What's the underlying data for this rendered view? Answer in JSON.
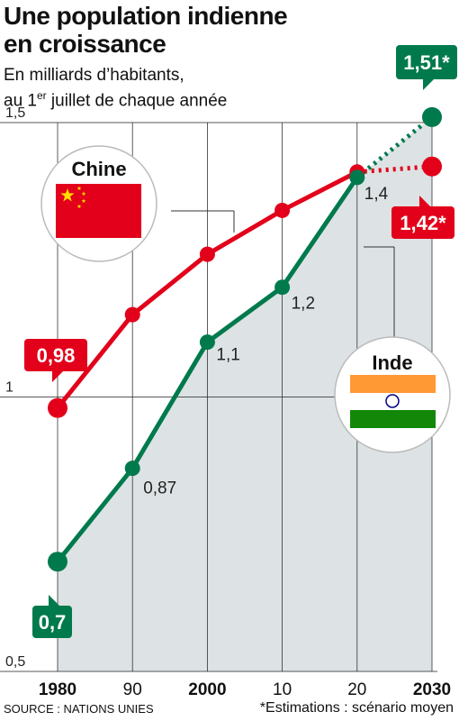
{
  "header": {
    "title_line1": "Une population indienne",
    "title_line2": "en croissance",
    "subtitle_line1": "En milliards d’habitants,",
    "subtitle_line2_pre": "au 1",
    "subtitle_line2_sup": "er",
    "subtitle_line2_post": " juillet de chaque année"
  },
  "footer": {
    "source": "SOURCE : NATIONS UNIES",
    "note": "*Estimations : scénario moyen"
  },
  "chart_data": {
    "type": "line",
    "x": [
      1980,
      1990,
      2000,
      2010,
      2020,
      2030
    ],
    "x_tick_labels": [
      "1980",
      "90",
      "2000",
      "10",
      "20",
      "2030"
    ],
    "y_ticks": [
      0.5,
      1,
      1.5
    ],
    "y_tick_labels": [
      "0,5",
      "1",
      "1,5"
    ],
    "ylim": [
      0.5,
      1.5
    ],
    "series": [
      {
        "name": "Chine",
        "color": "#e2001a",
        "values": [
          0.98,
          1.15,
          1.26,
          1.34,
          1.41,
          1.42
        ],
        "labels": [
          "0,98",
          "",
          "",
          "",
          "",
          "1,42*"
        ]
      },
      {
        "name": "Inde",
        "color": "#007a4d",
        "values": [
          0.7,
          0.87,
          1.1,
          1.2,
          1.4,
          1.51
        ],
        "labels": [
          "0,7",
          "0,87",
          "1,1",
          "1,2",
          "1,4",
          "1,51*"
        ]
      }
    ],
    "estimate_from_x": 2020,
    "flag_colors": {
      "china_red": "#e2001a",
      "china_star": "#ffde00",
      "india_saffron": "#ff9933",
      "india_green": "#138808",
      "india_chakra": "#000080"
    }
  }
}
